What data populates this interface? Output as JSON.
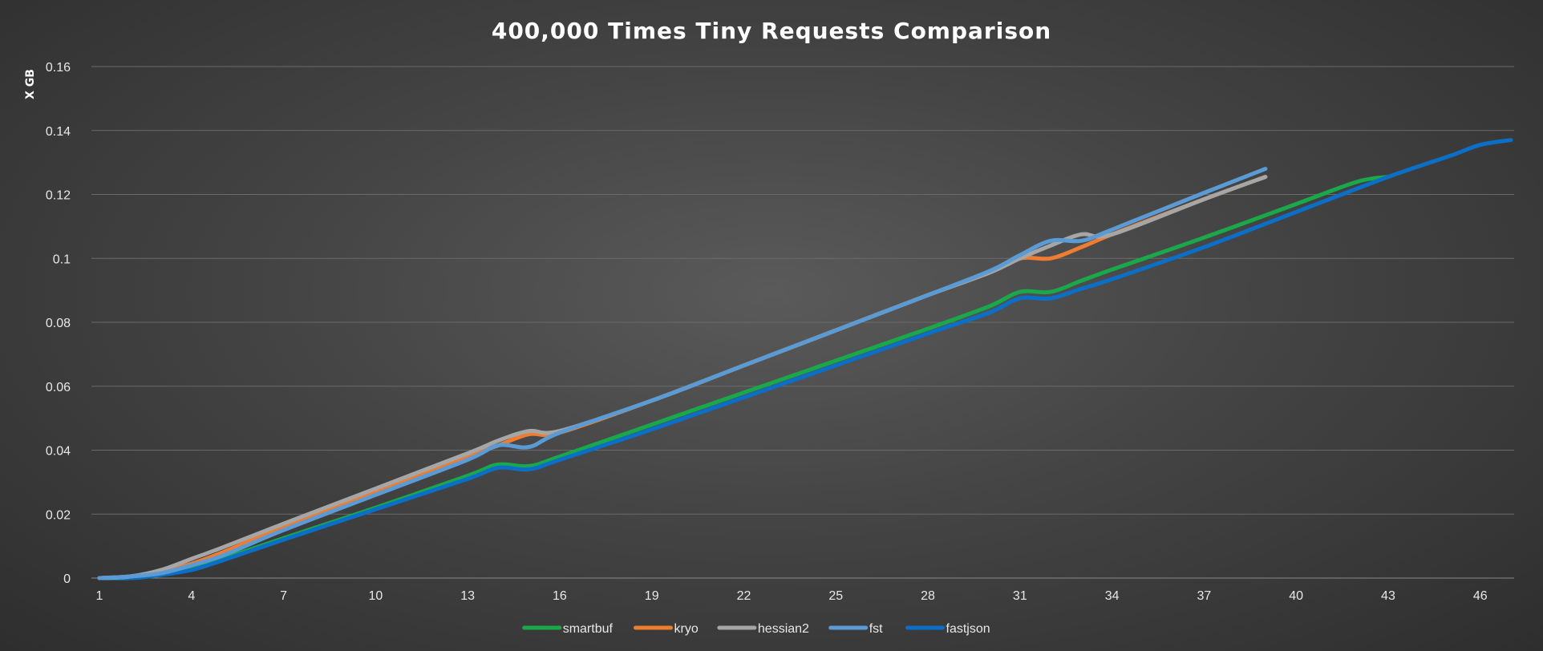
{
  "chart_data": {
    "type": "line",
    "title": "400,000 Times Tiny Requests Comparison",
    "xlabel": "",
    "ylabel": "X GB",
    "xlim": [
      1,
      47
    ],
    "ylim": [
      0,
      0.16
    ],
    "yticks": [
      0,
      0.02,
      0.04,
      0.06,
      0.08,
      0.1,
      0.12,
      0.14,
      0.16
    ],
    "ytick_labels": [
      "0",
      "0.02",
      "0.04",
      "0.06",
      "0.08",
      "0.1",
      "0.12",
      "0.14",
      "0.16"
    ],
    "xticks": [
      1,
      4,
      7,
      10,
      13,
      16,
      19,
      22,
      25,
      28,
      31,
      34,
      37,
      40,
      43,
      46
    ],
    "xtick_labels": [
      "1",
      "4",
      "7",
      "10",
      "13",
      "16",
      "19",
      "22",
      "25",
      "28",
      "31",
      "34",
      "37",
      "40",
      "43",
      "46"
    ],
    "grid": true,
    "legend_position": "bottom",
    "series": [
      {
        "name": "smartbuf",
        "color": "#19a94a",
        "x": [
          1,
          2,
          3,
          4,
          5,
          7,
          10,
          13,
          14,
          15,
          16,
          19,
          22,
          25,
          28,
          30,
          31,
          32,
          33,
          34,
          37,
          40,
          42,
          43
        ],
        "y": [
          0,
          0,
          0.001,
          0.003,
          0.006,
          0.0125,
          0.022,
          0.032,
          0.0355,
          0.035,
          0.038,
          0.048,
          0.058,
          0.068,
          0.078,
          0.085,
          0.0895,
          0.0895,
          0.093,
          0.0965,
          0.1065,
          0.117,
          0.124,
          0.1255
        ]
      },
      {
        "name": "kryo",
        "color": "#ee7d31",
        "x": [
          1,
          2,
          3,
          4,
          5,
          7,
          10,
          13,
          14,
          15,
          16,
          19,
          22,
          25,
          28,
          30,
          31,
          32,
          33,
          34,
          37,
          39
        ],
        "y": [
          0,
          0.0005,
          0.002,
          0.0045,
          0.008,
          0.016,
          0.027,
          0.038,
          0.0415,
          0.045,
          0.0455,
          0.0555,
          0.0665,
          0.0775,
          0.0885,
          0.0955,
          0.1,
          0.1,
          0.1035,
          0.1075,
          0.1185,
          0.1255
        ]
      },
      {
        "name": "hessian2",
        "color": "#a6a6a6",
        "x": [
          1,
          2,
          3,
          4,
          5,
          7,
          10,
          13,
          14,
          15,
          16,
          19,
          22,
          25,
          28,
          30,
          31,
          32,
          33,
          34,
          37,
          39
        ],
        "y": [
          0,
          0.0005,
          0.0025,
          0.006,
          0.0095,
          0.017,
          0.028,
          0.039,
          0.043,
          0.046,
          0.046,
          0.0555,
          0.0665,
          0.0775,
          0.0885,
          0.0955,
          0.1,
          0.104,
          0.1075,
          0.1075,
          0.1185,
          0.1255
        ]
      },
      {
        "name": "fst",
        "color": "#5b9bd5",
        "x": [
          1,
          2,
          3,
          4,
          5,
          7,
          10,
          13,
          14,
          15,
          16,
          19,
          22,
          25,
          28,
          30,
          31,
          32,
          33,
          34,
          37,
          39
        ],
        "y": [
          0,
          0.0005,
          0.0015,
          0.004,
          0.007,
          0.015,
          0.026,
          0.037,
          0.0415,
          0.041,
          0.0455,
          0.0555,
          0.0665,
          0.0775,
          0.0885,
          0.096,
          0.101,
          0.1055,
          0.1055,
          0.109,
          0.1205,
          0.128
        ]
      },
      {
        "name": "fastjson",
        "color": "#0c6fc7",
        "x": [
          1,
          2,
          3,
          4,
          5,
          7,
          10,
          13,
          14,
          15,
          16,
          19,
          22,
          25,
          28,
          30,
          31,
          32,
          33,
          34,
          37,
          40,
          43,
          45,
          46,
          47
        ],
        "y": [
          0,
          0,
          0.001,
          0.0025,
          0.0055,
          0.012,
          0.0215,
          0.031,
          0.0345,
          0.034,
          0.037,
          0.0465,
          0.0565,
          0.0665,
          0.0765,
          0.083,
          0.0875,
          0.0875,
          0.0905,
          0.0935,
          0.1035,
          0.1145,
          0.1255,
          0.132,
          0.1355,
          0.137
        ]
      }
    ]
  }
}
